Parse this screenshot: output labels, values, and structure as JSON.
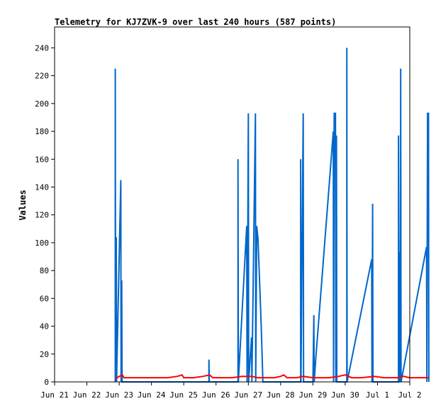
{
  "chart_data": {
    "type": "line",
    "title": "Telemetry for KJ7ZVK-9 over last 240 hours (587 points)",
    "xlabel": "",
    "ylabel": "Values",
    "ylim": [
      0,
      255
    ],
    "yticks": [
      0,
      20,
      40,
      60,
      80,
      100,
      120,
      140,
      160,
      180,
      200,
      220,
      240
    ],
    "xlim": [
      "Jun 21",
      "Jul 2"
    ],
    "xticks": [
      "Jun 21",
      "Jun 22",
      "Jun 23",
      "Jun 24",
      "Jun 25",
      "Jun 26",
      "Jun 27",
      "Jun 28",
      "Jun 29",
      "Jun 30",
      "Jul 1",
      "Jul 2"
    ],
    "grid": false,
    "series": [
      {
        "color": "#0066cc",
        "points": [
          [
            1.88,
            0
          ],
          [
            1.88,
            225
          ],
          [
            1.89,
            0
          ],
          [
            1.91,
            104
          ],
          [
            1.92,
            0
          ],
          [
            2.05,
            145
          ],
          [
            2.06,
            0
          ],
          [
            2.08,
            73
          ],
          [
            2.09,
            0
          ],
          [
            4.78,
            0
          ],
          [
            4.78,
            16
          ],
          [
            4.79,
            0
          ],
          [
            5.68,
            0
          ],
          [
            5.68,
            160
          ],
          [
            5.69,
            0
          ],
          [
            5.95,
            112
          ],
          [
            5.96,
            0
          ],
          [
            6.0,
            193
          ],
          [
            6.01,
            0
          ],
          [
            6.1,
            32
          ],
          [
            6.11,
            0
          ],
          [
            6.22,
            193
          ],
          [
            6.23,
            0
          ],
          [
            6.26,
            112
          ],
          [
            6.3,
            103
          ],
          [
            6.4,
            40
          ],
          [
            6.45,
            0
          ],
          [
            7.62,
            0
          ],
          [
            7.62,
            160
          ],
          [
            7.63,
            0
          ],
          [
            7.7,
            193
          ],
          [
            7.71,
            0
          ],
          [
            8.0,
            0
          ],
          [
            8.03,
            48
          ],
          [
            8.04,
            0
          ],
          [
            8.1,
            20
          ],
          [
            8.3,
            80
          ],
          [
            8.5,
            140
          ],
          [
            8.63,
            180
          ],
          [
            8.64,
            0
          ],
          [
            8.66,
            193
          ],
          [
            8.7,
            193
          ],
          [
            8.71,
            0
          ],
          [
            8.73,
            177
          ],
          [
            8.74,
            0
          ],
          [
            9.05,
            0
          ],
          [
            9.05,
            240
          ],
          [
            9.06,
            0
          ],
          [
            9.82,
            88
          ],
          [
            9.83,
            0
          ],
          [
            9.85,
            128
          ],
          [
            9.86,
            0
          ],
          [
            10.65,
            0
          ],
          [
            10.65,
            177
          ],
          [
            10.66,
            112
          ],
          [
            10.68,
            0
          ],
          [
            10.7,
            93
          ],
          [
            10.71,
            0
          ],
          [
            10.72,
            225
          ],
          [
            10.73,
            0
          ],
          [
            11.52,
            97
          ],
          [
            11.53,
            0
          ],
          [
            11.55,
            193
          ],
          [
            11.58,
            193
          ],
          [
            11.59,
            0
          ]
        ]
      },
      {
        "color": "#ff0000",
        "points": [
          [
            1.88,
            2
          ],
          [
            2.0,
            4
          ],
          [
            2.1,
            5
          ],
          [
            2.15,
            3
          ],
          [
            3.0,
            3
          ],
          [
            3.5,
            3
          ],
          [
            3.8,
            4
          ],
          [
            3.95,
            5
          ],
          [
            4.0,
            3
          ],
          [
            4.3,
            3
          ],
          [
            4.6,
            4
          ],
          [
            4.8,
            5
          ],
          [
            4.9,
            3
          ],
          [
            5.5,
            3
          ],
          [
            5.8,
            4
          ],
          [
            6.1,
            4
          ],
          [
            6.3,
            3
          ],
          [
            6.8,
            3
          ],
          [
            7.0,
            4
          ],
          [
            7.1,
            5
          ],
          [
            7.2,
            3
          ],
          [
            7.5,
            3
          ],
          [
            7.7,
            4
          ],
          [
            8.0,
            3
          ],
          [
            8.5,
            3
          ],
          [
            8.8,
            4
          ],
          [
            9.0,
            5
          ],
          [
            9.2,
            3
          ],
          [
            9.5,
            3
          ],
          [
            9.9,
            4
          ],
          [
            10.2,
            3
          ],
          [
            10.6,
            3
          ],
          [
            10.8,
            4
          ],
          [
            11.0,
            3
          ],
          [
            11.3,
            3
          ],
          [
            11.59,
            3
          ]
        ]
      }
    ]
  }
}
